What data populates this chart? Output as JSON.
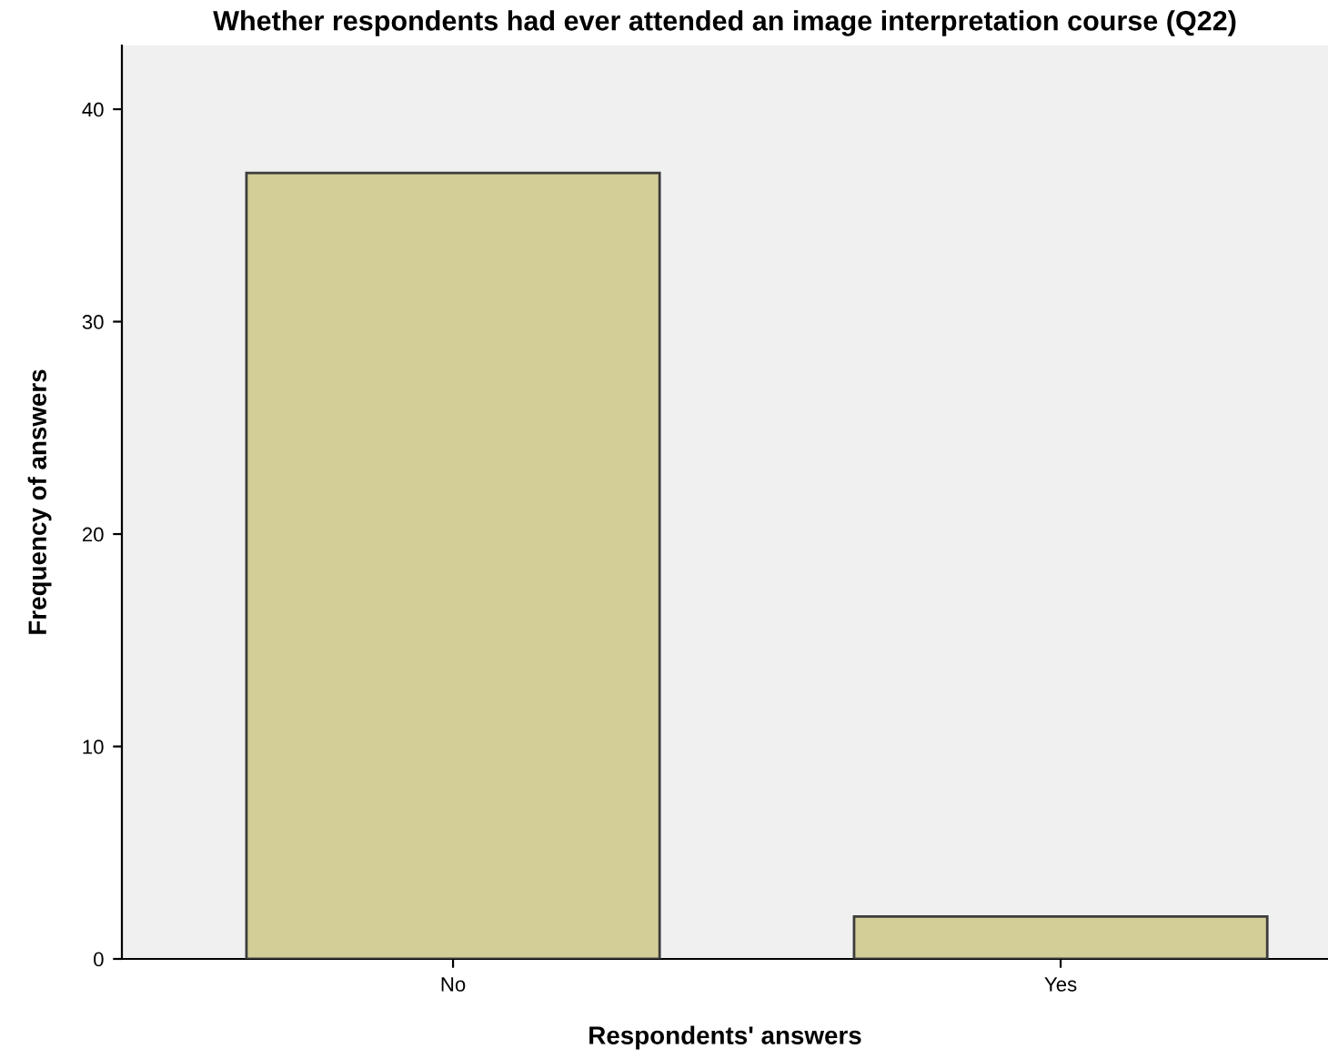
{
  "chart_data": {
    "type": "bar",
    "title": "Whether respondents had ever attended an image interpretation course (Q22)",
    "xlabel": "Respondents' answers",
    "ylabel": "Frequency of answers",
    "categories": [
      "No",
      "Yes"
    ],
    "values": [
      37,
      2
    ],
    "color": "#d3ce97",
    "ylim": [
      0,
      43
    ],
    "yticks": [
      0,
      10,
      20,
      30,
      40
    ],
    "grid": false,
    "legend": false
  }
}
